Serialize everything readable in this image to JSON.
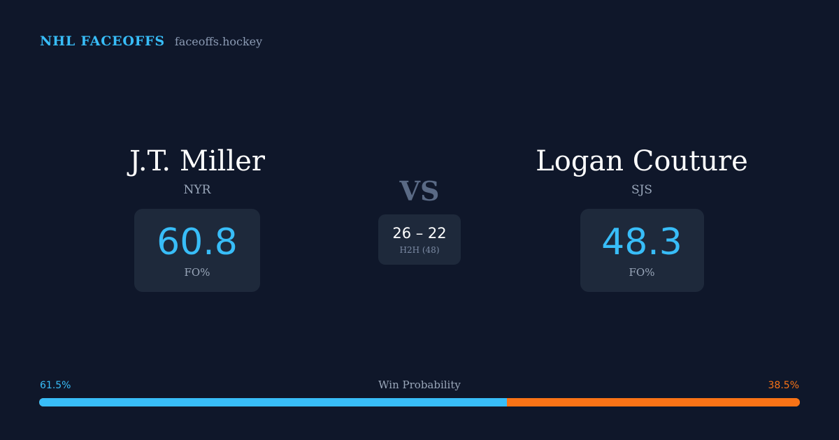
{
  "brand": {
    "name": "NHL FACEOFFS",
    "domain": "faceoffs.hockey"
  },
  "player1": {
    "name": "J.T. Miller",
    "team": "NYR",
    "fo_value": "60.8",
    "fo_label": "FO%"
  },
  "player2": {
    "name": "Logan Couture",
    "team": "SJS",
    "fo_value": "48.3",
    "fo_label": "FO%"
  },
  "versus": {
    "label": "VS",
    "h2h_score": "26 – 22",
    "h2h_label": "H2H (48)"
  },
  "win_probability": {
    "title": "Win Probability",
    "left_label": "61.5%",
    "right_label": "38.5%",
    "left_fraction": 0.615,
    "colors": {
      "left": "#38bdf8",
      "right": "#f97316"
    }
  }
}
